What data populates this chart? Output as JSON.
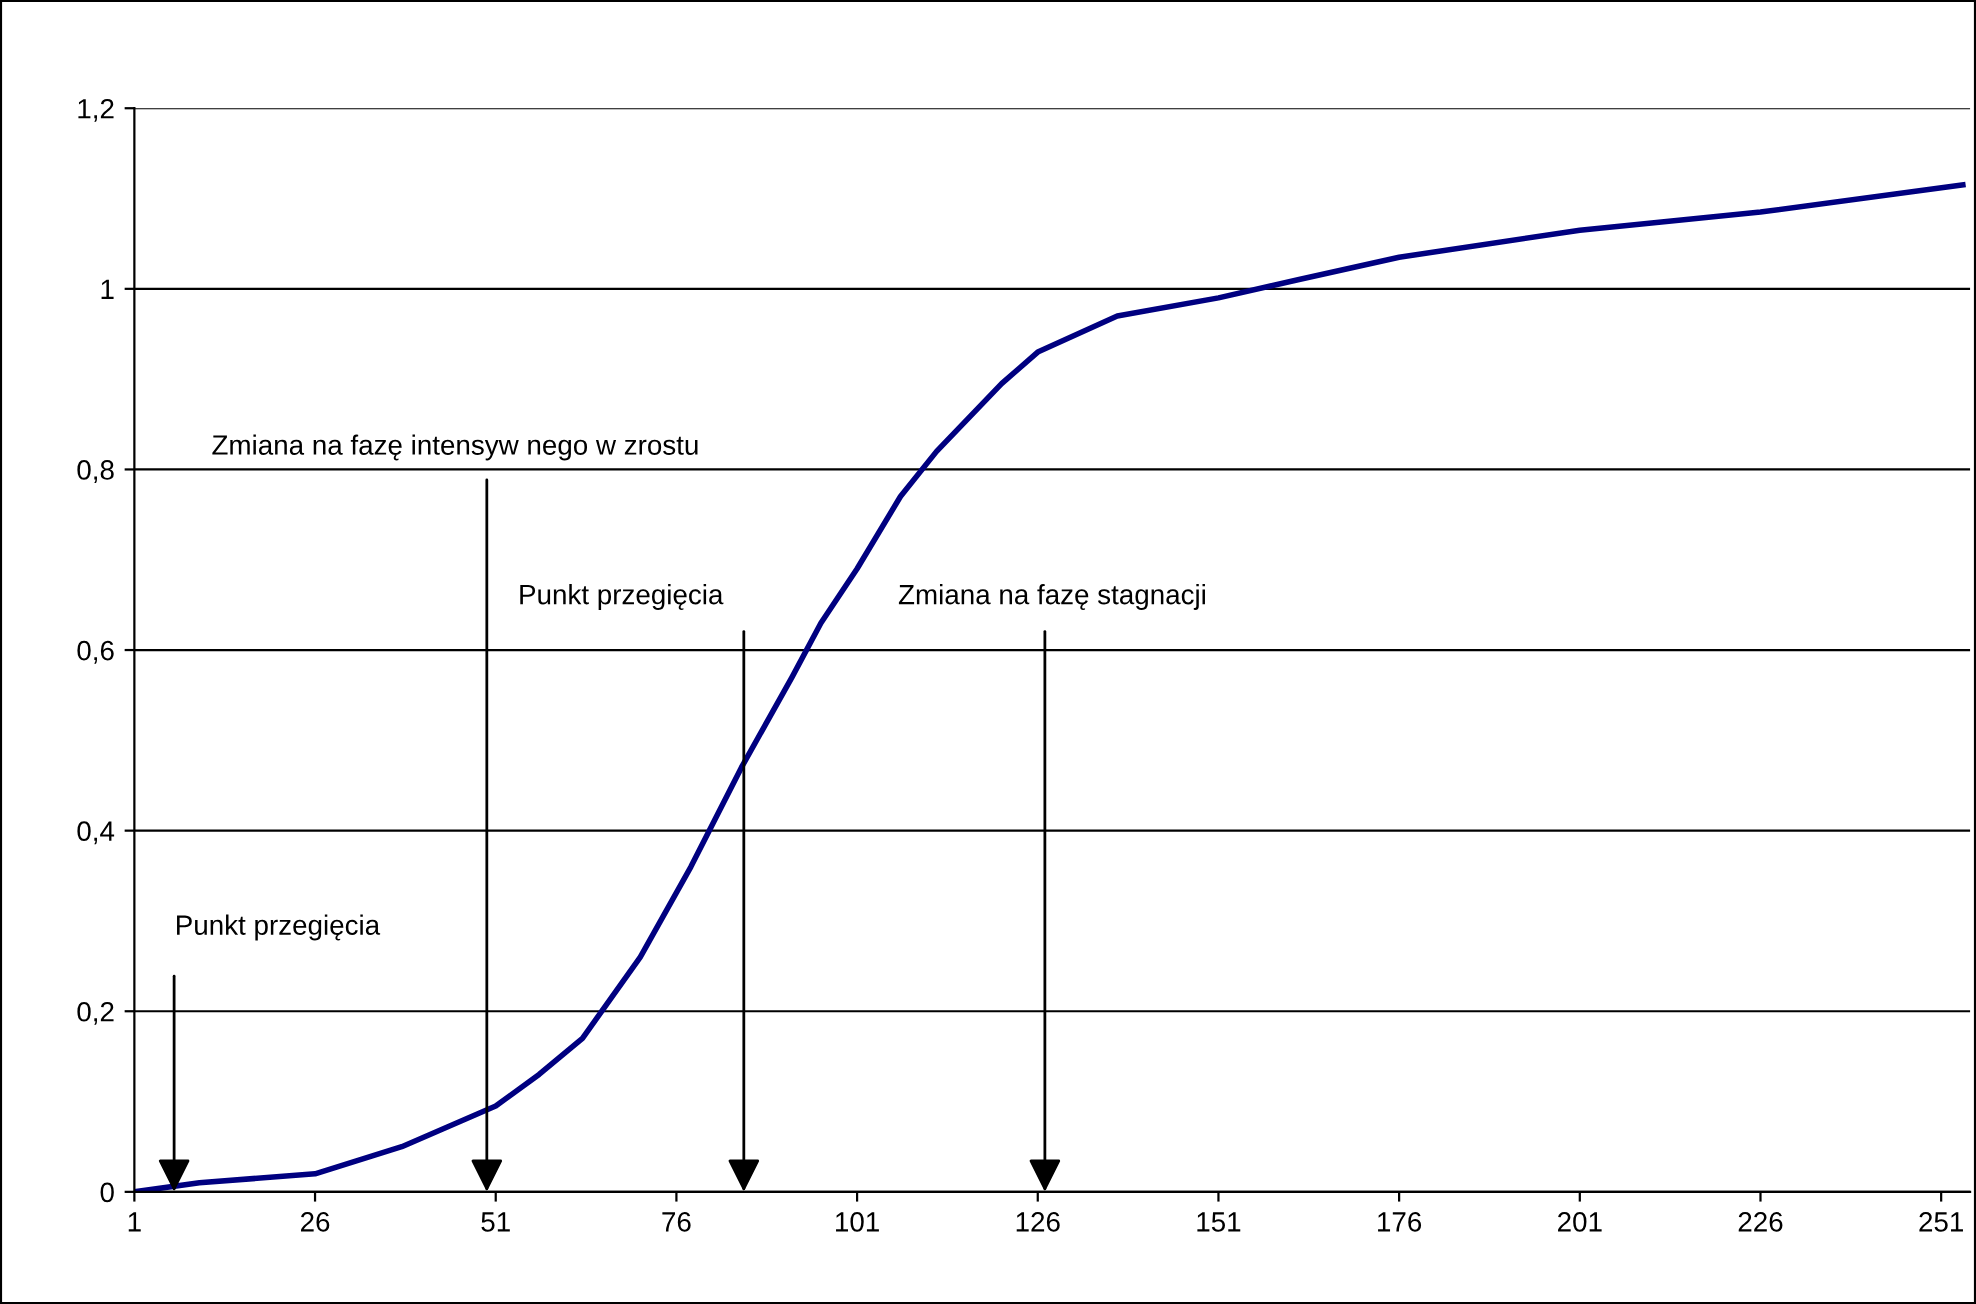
{
  "chart_data": {
    "type": "line",
    "x": [
      1,
      10,
      26,
      38,
      51,
      57,
      63,
      71,
      78,
      85,
      92,
      96,
      101,
      107,
      112,
      121,
      126,
      137,
      151,
      162,
      176,
      201,
      226,
      254
    ],
    "series": [
      {
        "color": "#000080",
        "values": [
          0,
          0.01,
          0.02,
          0.05,
          0.095,
          0.13,
          0.17,
          0.26,
          0.36,
          0.47,
          0.57,
          0.63,
          0.69,
          0.77,
          0.82,
          0.895,
          0.93,
          0.97,
          0.99,
          1.01,
          1.035,
          1.065,
          1.085,
          1.115
        ]
      }
    ],
    "xlim": [
      1,
      255
    ],
    "xticks": [
      1,
      26,
      51,
      76,
      101,
      126,
      151,
      176,
      201,
      226,
      251
    ],
    "ylim": [
      0,
      1.2
    ],
    "yticks": [
      0,
      {
        "value": 0.2,
        "label": "0,2"
      },
      {
        "value": 0.4,
        "label": "0,4"
      },
      {
        "value": 0.6,
        "label": "0,6"
      },
      {
        "value": 0.8,
        "label": "0,8"
      },
      1,
      {
        "value": 1.2,
        "label": "1,2"
      }
    ],
    "grid": "y",
    "legend": false,
    "marker": "none",
    "line_style": "solid",
    "annotations": [
      {
        "text": "Punkt przegięcia",
        "x": 6.5,
        "y": 0
      },
      "Zmiana na fazę intensyw nego w zrostu",
      "Punkt przegięcia",
      "Zmiana na fazę stagnacji"
    ]
  }
}
